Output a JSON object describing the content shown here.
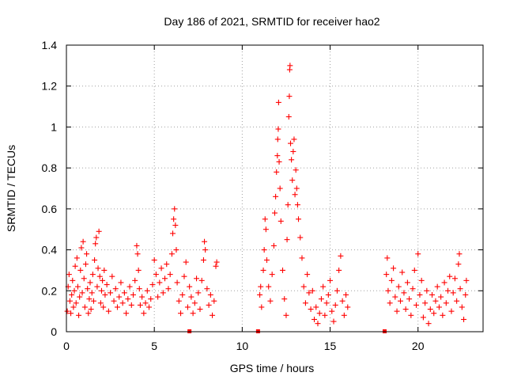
{
  "chart_data": {
    "type": "scatter",
    "title": "Day 186 of 2021, SRMTID for receiver hao2",
    "xlabel": "GPS time / hours",
    "ylabel": "SRMTID / TECUs",
    "xlim": [
      0,
      23.7
    ],
    "ylim": [
      0,
      1.4
    ],
    "xticks": [
      0,
      5,
      10,
      15,
      20
    ],
    "yticks": [
      0,
      0.2,
      0.4,
      0.6,
      0.8,
      1,
      1.2,
      1.4
    ],
    "xtick_labels": [
      "0",
      "5",
      "10",
      "15",
      "20"
    ],
    "ytick_labels": [
      "0",
      "0.2",
      "0.4",
      "0.6",
      "0.8",
      "1",
      "1.2",
      "1.4"
    ],
    "grid": true,
    "marker": "plus",
    "color": "#ff0000",
    "series": [
      {
        "name": "SRMTID",
        "points": [
          [
            0.05,
            0.1
          ],
          [
            0.1,
            0.22
          ],
          [
            0.15,
            0.28
          ],
          [
            0.2,
            0.15
          ],
          [
            0.25,
            0.09
          ],
          [
            0.3,
            0.18
          ],
          [
            0.35,
            0.25
          ],
          [
            0.4,
            0.12
          ],
          [
            0.45,
            0.2
          ],
          [
            0.5,
            0.32
          ],
          [
            0.55,
            0.14
          ],
          [
            0.6,
            0.36
          ],
          [
            0.65,
            0.22
          ],
          [
            0.7,
            0.08
          ],
          [
            0.75,
            0.17
          ],
          [
            0.8,
            0.3
          ],
          [
            0.85,
            0.41
          ],
          [
            0.9,
            0.19
          ],
          [
            0.95,
            0.44
          ],
          [
            1.0,
            0.26
          ],
          [
            1.05,
            0.12
          ],
          [
            1.1,
            0.33
          ],
          [
            1.15,
            0.38
          ],
          [
            1.2,
            0.21
          ],
          [
            1.25,
            0.09
          ],
          [
            1.3,
            0.16
          ],
          [
            1.35,
            0.24
          ],
          [
            1.4,
            0.11
          ],
          [
            1.45,
            0.19
          ],
          [
            1.5,
            0.28
          ],
          [
            1.55,
            0.15
          ],
          [
            1.6,
            0.35
          ],
          [
            1.65,
            0.43
          ],
          [
            1.7,
            0.46
          ],
          [
            1.75,
            0.22
          ],
          [
            1.8,
            0.31
          ],
          [
            1.85,
            0.49
          ],
          [
            1.9,
            0.27
          ],
          [
            1.95,
            0.14
          ],
          [
            2.0,
            0.2
          ],
          [
            2.05,
            0.25
          ],
          [
            2.1,
            0.12
          ],
          [
            2.15,
            0.3
          ],
          [
            2.2,
            0.18
          ],
          [
            2.3,
            0.23
          ],
          [
            2.4,
            0.1
          ],
          [
            2.5,
            0.19
          ],
          [
            2.6,
            0.27
          ],
          [
            2.7,
            0.15
          ],
          [
            2.8,
            0.21
          ],
          [
            2.9,
            0.12
          ],
          [
            3.0,
            0.17
          ],
          [
            3.1,
            0.24
          ],
          [
            3.2,
            0.14
          ],
          [
            3.3,
            0.19
          ],
          [
            3.4,
            0.09
          ],
          [
            3.5,
            0.16
          ],
          [
            3.6,
            0.22
          ],
          [
            3.7,
            0.13
          ],
          [
            3.8,
            0.18
          ],
          [
            3.9,
            0.25
          ],
          [
            4.0,
            0.42
          ],
          [
            4.05,
            0.38
          ],
          [
            4.1,
            0.3
          ],
          [
            4.15,
            0.21
          ],
          [
            4.2,
            0.13
          ],
          [
            4.3,
            0.17
          ],
          [
            4.4,
            0.09
          ],
          [
            4.5,
            0.14
          ],
          [
            4.6,
            0.2
          ],
          [
            4.7,
            0.12
          ],
          [
            4.8,
            0.16
          ],
          [
            4.9,
            0.23
          ],
          [
            5.0,
            0.35
          ],
          [
            5.1,
            0.28
          ],
          [
            5.2,
            0.17
          ],
          [
            5.3,
            0.24
          ],
          [
            5.4,
            0.31
          ],
          [
            5.5,
            0.19
          ],
          [
            5.6,
            0.26
          ],
          [
            5.7,
            0.33
          ],
          [
            5.8,
            0.21
          ],
          [
            5.9,
            0.28
          ],
          [
            6.0,
            0.38
          ],
          [
            6.05,
            0.48
          ],
          [
            6.1,
            0.55
          ],
          [
            6.15,
            0.6
          ],
          [
            6.2,
            0.52
          ],
          [
            6.25,
            0.4
          ],
          [
            6.3,
            0.24
          ],
          [
            6.4,
            0.15
          ],
          [
            6.5,
            0.09
          ],
          [
            6.6,
            0.18
          ],
          [
            6.7,
            0.27
          ],
          [
            6.8,
            0.34
          ],
          [
            6.9,
            0.12
          ],
          [
            7.0,
            0.22
          ],
          [
            7.1,
            0.17
          ],
          [
            7.2,
            0.09
          ],
          [
            7.3,
            0.14
          ],
          [
            7.4,
            0.26
          ],
          [
            7.5,
            0.19
          ],
          [
            7.6,
            0.11
          ],
          [
            7.7,
            0.25
          ],
          [
            7.8,
            0.35
          ],
          [
            7.85,
            0.44
          ],
          [
            7.9,
            0.4
          ],
          [
            8.0,
            0.21
          ],
          [
            8.1,
            0.13
          ],
          [
            8.2,
            0.18
          ],
          [
            8.3,
            0.08
          ],
          [
            8.4,
            0.15
          ],
          [
            8.5,
            0.32
          ],
          [
            8.55,
            0.34
          ],
          [
            11.0,
            0.18
          ],
          [
            11.05,
            0.22
          ],
          [
            11.1,
            0.12
          ],
          [
            11.2,
            0.3
          ],
          [
            11.25,
            0.4
          ],
          [
            11.3,
            0.55
          ],
          [
            11.35,
            0.5
          ],
          [
            11.4,
            0.35
          ],
          [
            11.5,
            0.22
          ],
          [
            11.6,
            0.15
          ],
          [
            11.7,
            0.28
          ],
          [
            11.8,
            0.42
          ],
          [
            11.85,
            0.58
          ],
          [
            11.9,
            0.66
          ],
          [
            11.95,
            0.78
          ],
          [
            12.0,
            0.86
          ],
          [
            12.02,
            0.94
          ],
          [
            12.05,
            0.99
          ],
          [
            12.07,
            1.12
          ],
          [
            12.1,
            0.83
          ],
          [
            12.15,
            0.7
          ],
          [
            12.2,
            0.54
          ],
          [
            12.3,
            0.3
          ],
          [
            12.4,
            0.16
          ],
          [
            12.5,
            0.08
          ],
          [
            12.55,
            0.45
          ],
          [
            12.6,
            0.62
          ],
          [
            12.65,
            1.05
          ],
          [
            12.68,
            1.15
          ],
          [
            12.7,
            1.28
          ],
          [
            12.72,
            1.3
          ],
          [
            12.75,
            0.92
          ],
          [
            12.8,
            0.84
          ],
          [
            12.85,
            0.74
          ],
          [
            12.9,
            0.88
          ],
          [
            12.95,
            0.94
          ],
          [
            13.0,
            0.67
          ],
          [
            13.05,
            0.79
          ],
          [
            13.1,
            0.7
          ],
          [
            13.15,
            0.62
          ],
          [
            13.2,
            0.55
          ],
          [
            13.3,
            0.46
          ],
          [
            13.4,
            0.36
          ],
          [
            13.5,
            0.22
          ],
          [
            13.6,
            0.14
          ],
          [
            13.7,
            0.28
          ],
          [
            13.8,
            0.19
          ],
          [
            13.9,
            0.11
          ],
          [
            14.0,
            0.2
          ],
          [
            14.1,
            0.06
          ],
          [
            14.2,
            0.12
          ],
          [
            14.3,
            0.04
          ],
          [
            14.4,
            0.09
          ],
          [
            14.5,
            0.16
          ],
          [
            14.6,
            0.22
          ],
          [
            14.7,
            0.08
          ],
          [
            14.8,
            0.14
          ],
          [
            14.9,
            0.18
          ],
          [
            15.0,
            0.25
          ],
          [
            15.1,
            0.1
          ],
          [
            15.2,
            0.05
          ],
          [
            15.3,
            0.13
          ],
          [
            15.4,
            0.2
          ],
          [
            15.5,
            0.3
          ],
          [
            15.6,
            0.37
          ],
          [
            15.7,
            0.15
          ],
          [
            15.8,
            0.08
          ],
          [
            15.9,
            0.18
          ],
          [
            16.0,
            0.12
          ],
          [
            18.2,
            0.28
          ],
          [
            18.25,
            0.36
          ],
          [
            18.3,
            0.2
          ],
          [
            18.4,
            0.14
          ],
          [
            18.5,
            0.25
          ],
          [
            18.6,
            0.31
          ],
          [
            18.7,
            0.17
          ],
          [
            18.8,
            0.1
          ],
          [
            18.9,
            0.22
          ],
          [
            19.0,
            0.15
          ],
          [
            19.1,
            0.29
          ],
          [
            19.2,
            0.19
          ],
          [
            19.3,
            0.11
          ],
          [
            19.4,
            0.24
          ],
          [
            19.5,
            0.16
          ],
          [
            19.6,
            0.08
          ],
          [
            19.7,
            0.21
          ],
          [
            19.8,
            0.3
          ],
          [
            19.9,
            0.13
          ],
          [
            20.0,
            0.38
          ],
          [
            20.1,
            0.18
          ],
          [
            20.2,
            0.25
          ],
          [
            20.3,
            0.07
          ],
          [
            20.4,
            0.14
          ],
          [
            20.5,
            0.2
          ],
          [
            20.6,
            0.04
          ],
          [
            20.7,
            0.11
          ],
          [
            20.8,
            0.18
          ],
          [
            20.9,
            0.09
          ],
          [
            21.0,
            0.15
          ],
          [
            21.1,
            0.22
          ],
          [
            21.2,
            0.12
          ],
          [
            21.3,
            0.17
          ],
          [
            21.4,
            0.08
          ],
          [
            21.5,
            0.24
          ],
          [
            21.6,
            0.14
          ],
          [
            21.7,
            0.2
          ],
          [
            21.8,
            0.27
          ],
          [
            21.9,
            0.1
          ],
          [
            22.0,
            0.19
          ],
          [
            22.1,
            0.26
          ],
          [
            22.2,
            0.15
          ],
          [
            22.3,
            0.33
          ],
          [
            22.35,
            0.38
          ],
          [
            22.4,
            0.21
          ],
          [
            22.5,
            0.12
          ],
          [
            22.6,
            0.06
          ],
          [
            22.7,
            0.18
          ],
          [
            22.75,
            0.25
          ]
        ]
      }
    ],
    "gap_markers": [
      7.0,
      10.9,
      18.1
    ]
  }
}
